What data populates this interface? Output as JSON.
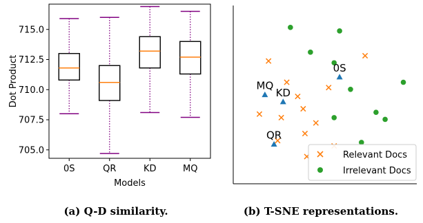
{
  "chart_data": [
    {
      "type": "box",
      "caption": "(a) Q-D similarity.",
      "xlabel": "Models",
      "ylabel": "Dot Product",
      "categories": [
        "0S",
        "QR",
        "KD",
        "MQ"
      ],
      "ylim": [
        704.3,
        717.1
      ],
      "yticks": [
        "705.0",
        "707.5",
        "710.0",
        "712.5",
        "715.0"
      ],
      "boxes": [
        {
          "category": "0S",
          "whisker_low": 708.0,
          "q1": 710.8,
          "median": 711.8,
          "q3": 713.0,
          "whisker_high": 715.9
        },
        {
          "category": "QR",
          "whisker_low": 704.7,
          "q1": 709.1,
          "median": 710.6,
          "q3": 712.0,
          "whisker_high": 716.0
        },
        {
          "category": "KD",
          "whisker_low": 708.1,
          "q1": 711.8,
          "median": 713.2,
          "q3": 714.4,
          "whisker_high": 716.9
        },
        {
          "category": "MQ",
          "whisker_low": 707.7,
          "q1": 711.3,
          "median": 712.7,
          "q3": 714.0,
          "whisker_high": 716.5
        }
      ],
      "colors": {
        "box": "#000000",
        "median": "#ff7f0e",
        "whisker": "#800080",
        "cap": "#800080"
      }
    },
    {
      "type": "scatter",
      "caption": "(b) T-SNE representations.",
      "legend": [
        "Relevant Docs",
        "Irrelevant Docs"
      ],
      "legend_position": "bottom-right",
      "xlim": [
        0,
        100
      ],
      "ylim": [
        0,
        100
      ],
      "relevant": [
        [
          19,
          69
        ],
        [
          29,
          57
        ],
        [
          35,
          49
        ],
        [
          52,
          54
        ],
        [
          72,
          72
        ],
        [
          14,
          39
        ],
        [
          38,
          42
        ],
        [
          45,
          34
        ],
        [
          26,
          37
        ],
        [
          39,
          28
        ],
        [
          24,
          24
        ],
        [
          55,
          21
        ],
        [
          40,
          15
        ]
      ],
      "irrelevant": [
        [
          31,
          88
        ],
        [
          58,
          86
        ],
        [
          42,
          74
        ],
        [
          55,
          68
        ],
        [
          64,
          53
        ],
        [
          93,
          57
        ],
        [
          78,
          40
        ],
        [
          55,
          37
        ],
        [
          83,
          36
        ],
        [
          70,
          23
        ]
      ],
      "queries": [
        {
          "label": "MQ",
          "x": 17,
          "y": 50
        },
        {
          "label": "KD",
          "x": 27,
          "y": 46
        },
        {
          "label": "0S",
          "x": 58,
          "y": 60
        },
        {
          "label": "QR",
          "x": 22,
          "y": 22
        }
      ],
      "colors": {
        "relevant": "#ff7f0e",
        "irrelevant": "#2ca02c",
        "query": "#1f77b4"
      }
    }
  ]
}
